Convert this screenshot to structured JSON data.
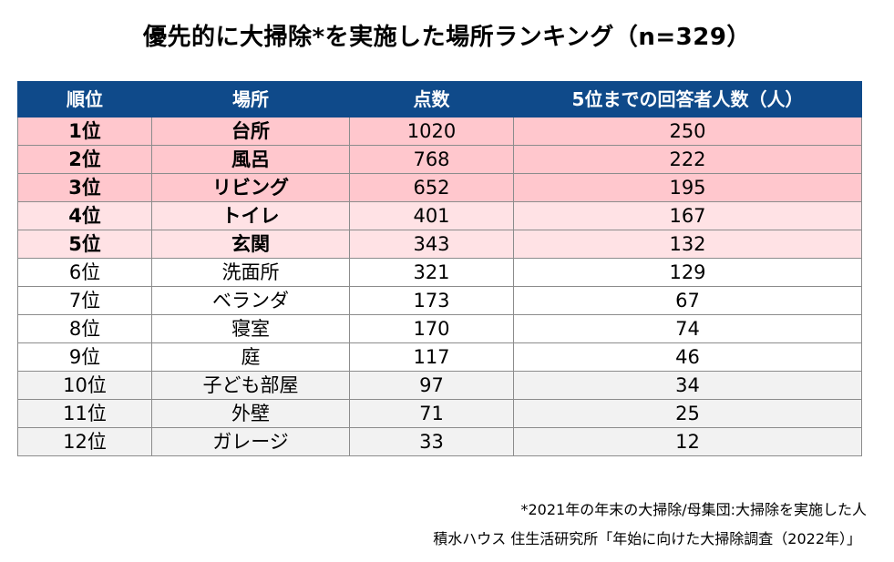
{
  "title": "優先的に大掃除*を実施した場所ランキング（n=329）",
  "table": {
    "headers": [
      "順位",
      "場所",
      "点数",
      "5位までの回答者人数（人）"
    ],
    "rows": [
      {
        "rank": "1位",
        "place": "台所",
        "score": "1020",
        "respondents": "250",
        "style": "top3"
      },
      {
        "rank": "2位",
        "place": "風呂",
        "score": "768",
        "respondents": "222",
        "style": "top3"
      },
      {
        "rank": "3位",
        "place": "リビング",
        "score": "652",
        "respondents": "195",
        "style": "top3"
      },
      {
        "rank": "4位",
        "place": "トイレ",
        "score": "401",
        "respondents": "167",
        "style": "top5"
      },
      {
        "rank": "5位",
        "place": "玄関",
        "score": "343",
        "respondents": "132",
        "style": "top5"
      },
      {
        "rank": "6位",
        "place": "洗面所",
        "score": "321",
        "respondents": "129",
        "style": "plain"
      },
      {
        "rank": "7位",
        "place": "ベランダ",
        "score": "173",
        "respondents": "67",
        "style": "plain"
      },
      {
        "rank": "8位",
        "place": "寝室",
        "score": "170",
        "respondents": "74",
        "style": "plain"
      },
      {
        "rank": "9位",
        "place": "庭",
        "score": "117",
        "respondents": "46",
        "style": "plain"
      },
      {
        "rank": "10位",
        "place": "子ども部屋",
        "score": "97",
        "respondents": "34",
        "style": "gray"
      },
      {
        "rank": "11位",
        "place": "外壁",
        "score": "71",
        "respondents": "25",
        "style": "gray"
      },
      {
        "rank": "12位",
        "place": "ガレージ",
        "score": "33",
        "respondents": "12",
        "style": "gray"
      }
    ]
  },
  "notes": {
    "footnote": "*2021年の年末の大掃除/母集団:大掃除を実施した人",
    "source": "積水ハウス 住生活研究所「年始に向けた大掃除調査（2022年）」"
  },
  "colors": {
    "header_bg": "#0f4a8a",
    "top3_bg": "#ffc7cd",
    "top5_bg": "#ffe2e5",
    "gray_bg": "#f2f2f2"
  }
}
